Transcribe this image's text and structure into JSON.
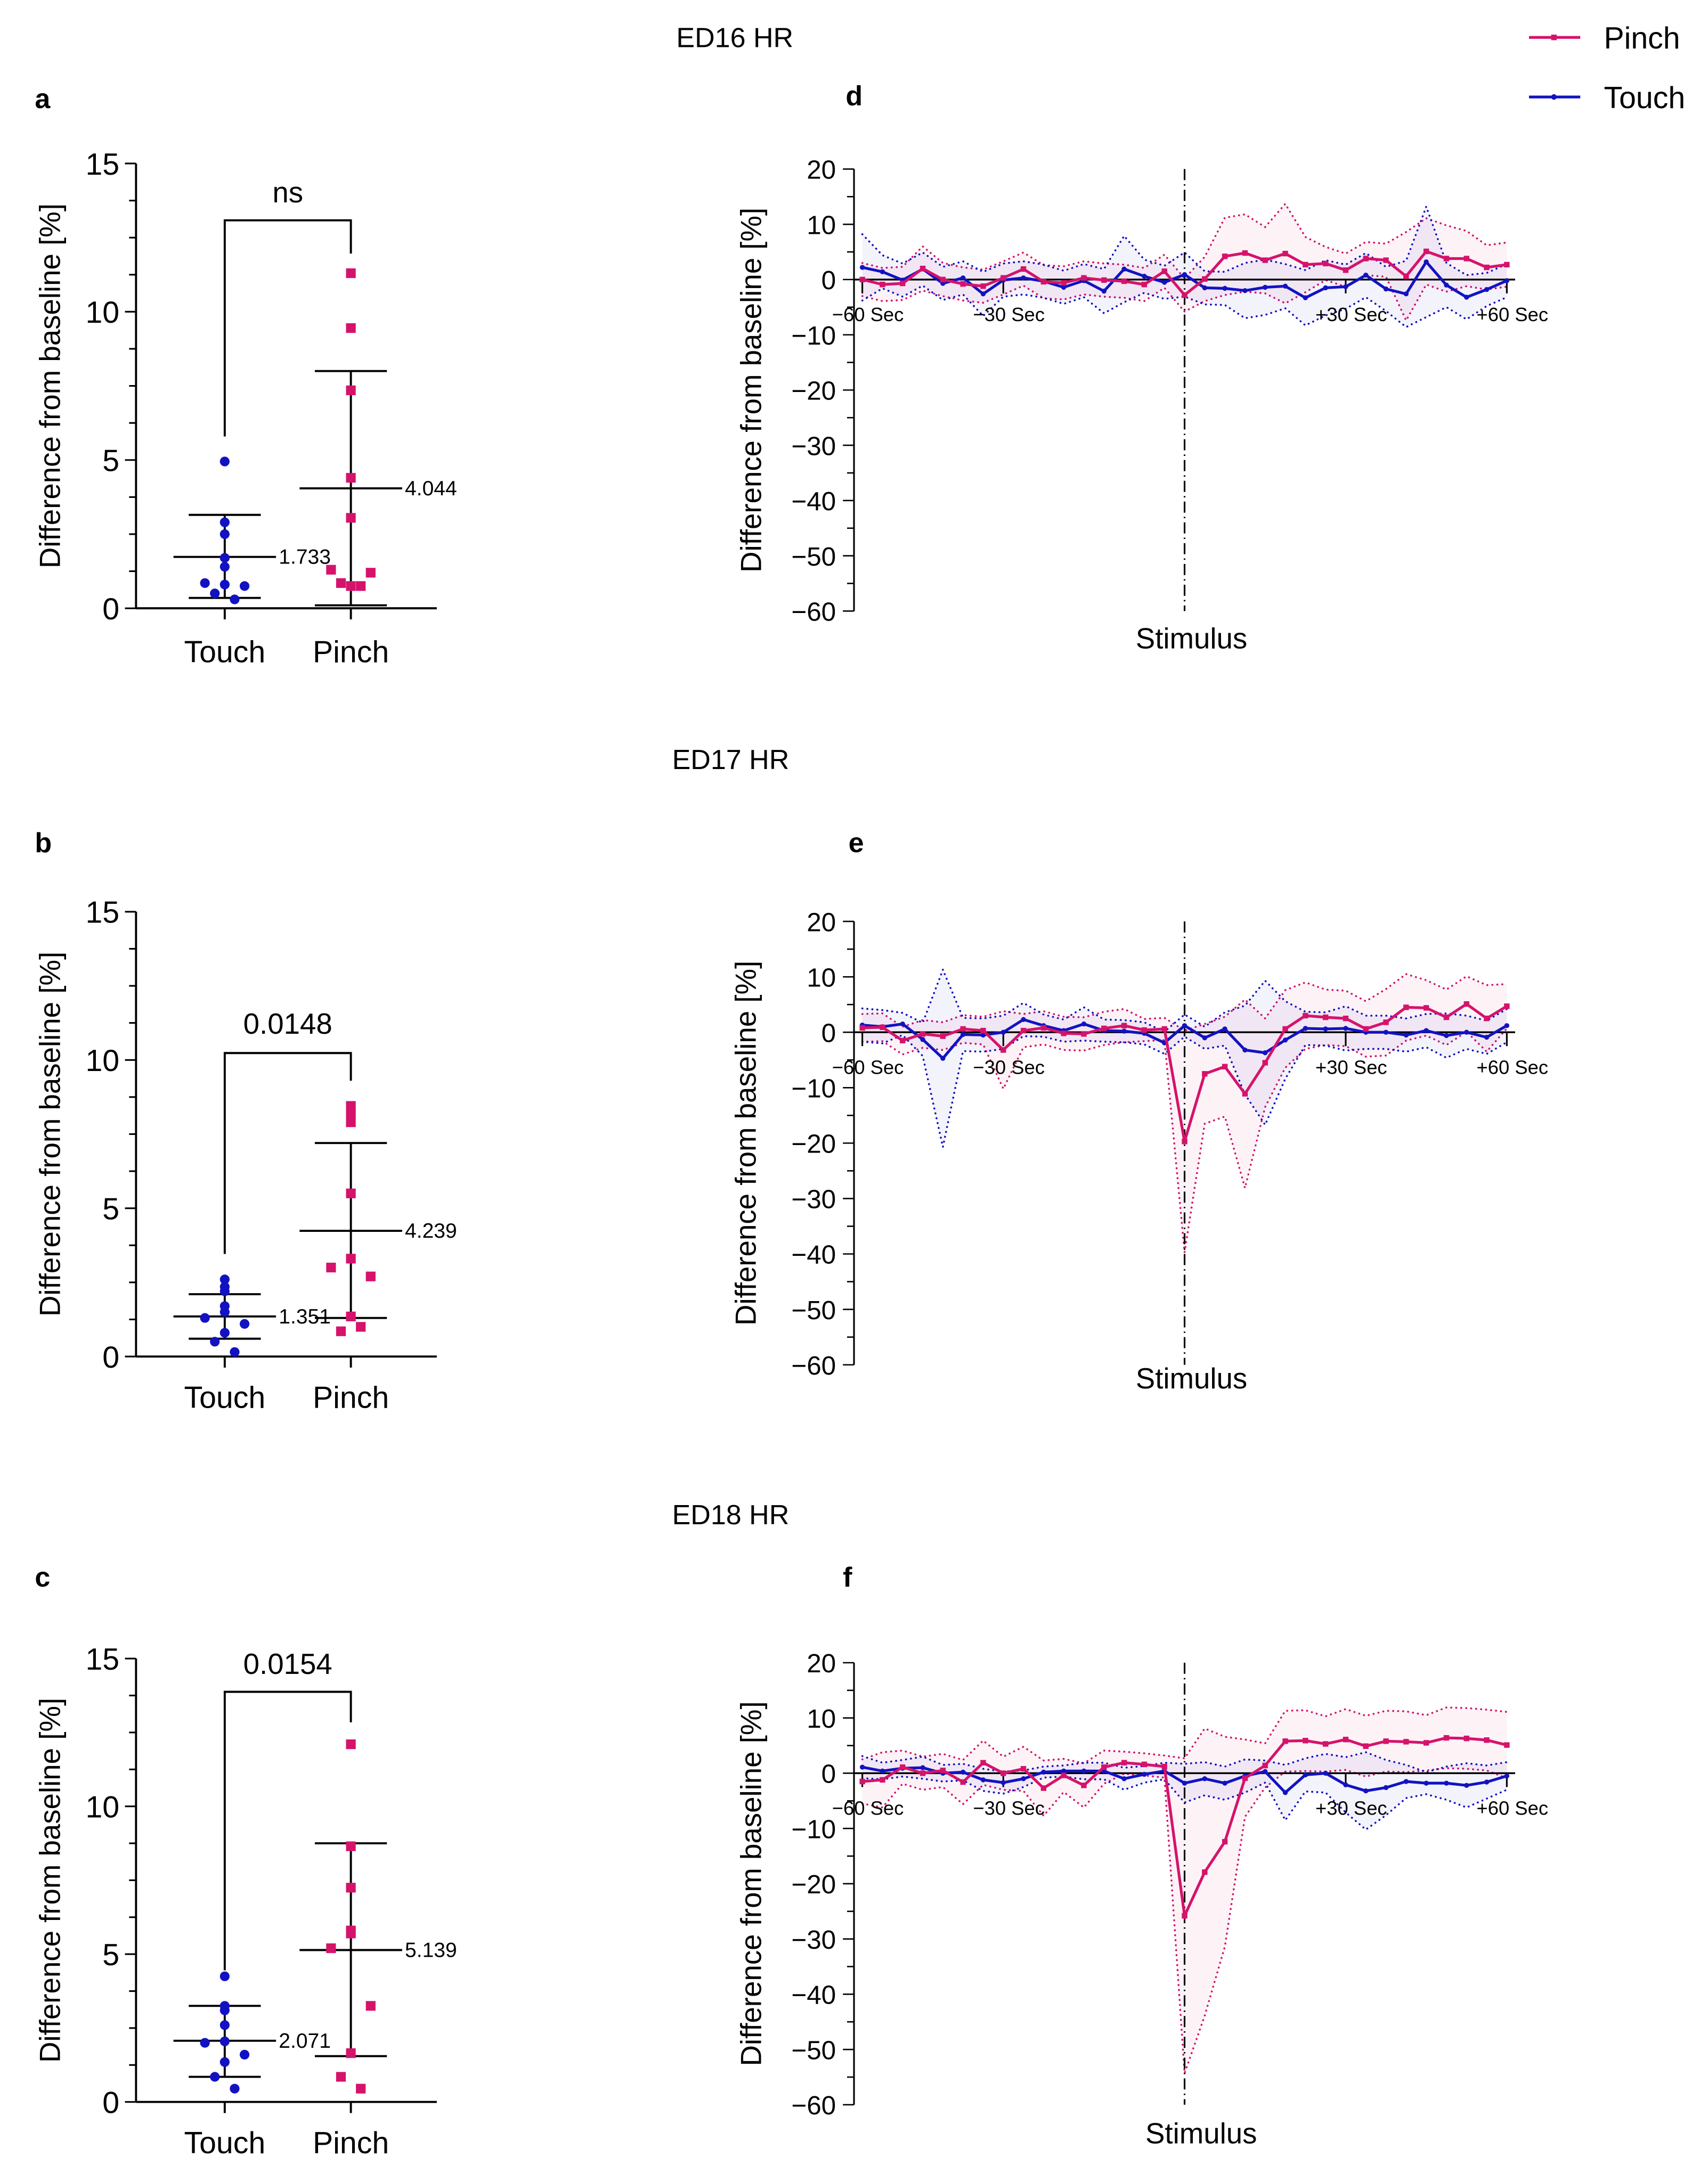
{
  "figure": {
    "titles": [
      "ED16 HR",
      "ED17 HR",
      "ED18 HR"
    ],
    "legend": [
      {
        "label": "Pinch",
        "color": "#d5136b"
      },
      {
        "label": "Touch",
        "color": "#1212c2"
      }
    ]
  },
  "chart_data": [
    {
      "panel": "a",
      "type": "scatter",
      "title": "ED16 HR",
      "ylabel": "Difference from baseline [%]",
      "ylim": [
        0,
        15
      ],
      "yticks": [
        "0",
        "5",
        "10",
        "15"
      ],
      "categories": [
        "Touch",
        "Pinch"
      ],
      "significance": "ns",
      "groups": [
        {
          "name": "Touch",
          "values": [
            4.95,
            2.9,
            2.5,
            1.7,
            1.4,
            0.85,
            0.75,
            0.8,
            0.5,
            0.3
          ],
          "mean": 1.733,
          "mean_label": "1.733",
          "error_bar": [
            0.35,
            3.15
          ]
        },
        {
          "name": "Pinch",
          "values": [
            11.3,
            9.45,
            7.35,
            4.4,
            3.05,
            1.3,
            1.2,
            0.75,
            0.85,
            0.75
          ],
          "mean": 4.044,
          "mean_label": "4.044",
          "error_bar": [
            0.1,
            8.0
          ]
        }
      ]
    },
    {
      "panel": "b",
      "type": "scatter",
      "title": "ED17 HR",
      "ylabel": "Difference from baseline [%]",
      "ylim": [
        0,
        15
      ],
      "yticks": [
        "0",
        "5",
        "10",
        "15"
      ],
      "categories": [
        "Touch",
        "Pinch"
      ],
      "significance": "0.0148",
      "groups": [
        {
          "name": "Touch",
          "values": [
            2.6,
            2.35,
            2.2,
            1.7,
            1.5,
            1.3,
            1.1,
            0.8,
            0.5,
            0.15
          ],
          "mean": 1.351,
          "mean_label": "1.351",
          "error_bar": [
            0.6,
            2.1
          ]
        },
        {
          "name": "Pinch",
          "values": [
            8.45,
            8.2,
            7.9,
            5.5,
            3.3,
            3.0,
            2.7,
            1.35,
            0.85,
            1.0
          ],
          "mean": 4.239,
          "mean_label": "4.239",
          "error_bar": [
            1.3,
            7.2
          ]
        }
      ]
    },
    {
      "panel": "c",
      "type": "scatter",
      "title": "ED18 HR",
      "ylabel": "Difference from baseline [%]",
      "ylim": [
        0,
        15
      ],
      "yticks": [
        "0",
        "5",
        "10",
        "15"
      ],
      "categories": [
        "Touch",
        "Pinch"
      ],
      "significance": "0.0154",
      "groups": [
        {
          "name": "Touch",
          "values": [
            4.25,
            3.25,
            3.1,
            2.6,
            2.05,
            2.0,
            1.6,
            1.35,
            0.85,
            0.45
          ],
          "mean": 2.071,
          "mean_label": "2.071",
          "error_bar": [
            0.85,
            3.25
          ]
        },
        {
          "name": "Pinch",
          "values": [
            12.1,
            8.65,
            7.25,
            5.8,
            5.7,
            5.2,
            3.25,
            1.65,
            0.85,
            0.45
          ],
          "mean": 5.139,
          "mean_label": "5.139",
          "error_bar": [
            1.55,
            8.75
          ]
        }
      ]
    },
    {
      "panel": "d",
      "type": "line",
      "title": "ED16 HR",
      "ylabel": "Difference from baseline [%]",
      "xlabel": "Stimulus",
      "ylim": [
        -60,
        20
      ],
      "yticks": [
        "20",
        "10",
        "0",
        "−10",
        "−20",
        "−30",
        "−40",
        "−50",
        "−60"
      ],
      "x_ticks": [
        {
          "index": 0,
          "label": "−60 Sec"
        },
        {
          "index": 7,
          "label": "−30 Sec"
        },
        {
          "index": 24,
          "label": "+30 Sec"
        },
        {
          "index": 32,
          "label": "+60 Sec"
        }
      ],
      "stimulus_index": 16,
      "series": [
        {
          "name": "Pinch",
          "values": [
            0,
            -0.9,
            -0.7,
            2.0,
            0,
            -0.8,
            -1.2,
            0.3,
            1.9,
            -0.4,
            -0.6,
            0.3,
            -0.1,
            -0.3,
            -0.9,
            1.5,
            -2.8,
            0.1,
            4.2,
            4.8,
            3.5,
            4.7,
            2.7,
            2.9,
            1.7,
            3.8,
            3.5,
            0.6,
            5.1,
            3.8,
            3.8,
            2.2,
            2.7
          ],
          "sd": [
            3,
            3,
            3,
            4,
            3,
            3,
            3,
            3,
            3,
            3,
            3,
            3,
            3,
            3,
            3,
            3,
            3,
            4,
            7,
            7,
            6,
            9,
            5,
            3,
            3,
            3,
            3,
            8,
            6,
            6,
            5,
            4,
            4
          ]
        },
        {
          "name": "Touch",
          "values": [
            2.2,
            1.4,
            -0.1,
            1.9,
            -0.7,
            0.3,
            -2.6,
            -0.1,
            0.3,
            -0.3,
            -1.4,
            -0.2,
            -2.1,
            1.9,
            0.6,
            -0.5,
            0.9,
            -1.5,
            -1.6,
            -2.0,
            -1.4,
            -1.2,
            -3.3,
            -1.5,
            -1.3,
            0.8,
            -1.7,
            -2.6,
            3.2,
            -1.0,
            -3.2,
            -1.8,
            -0.2
          ],
          "sd": [
            6,
            3,
            3,
            3,
            3,
            3,
            4,
            3,
            3,
            3,
            3,
            3,
            4,
            6,
            3,
            3,
            4,
            3,
            3,
            5,
            5,
            4,
            5,
            5,
            4,
            4,
            4,
            6,
            10,
            4,
            4,
            3,
            3
          ]
        }
      ]
    },
    {
      "panel": "e",
      "type": "line",
      "title": "ED17 HR",
      "ylabel": "Difference from baseline [%]",
      "xlabel": "Stimulus",
      "ylim": [
        -60,
        20
      ],
      "yticks": [
        "20",
        "10",
        "0",
        "−10",
        "−20",
        "−30",
        "−40",
        "−50",
        "−60"
      ],
      "x_ticks": [
        {
          "index": 0,
          "label": "−60 Sec"
        },
        {
          "index": 7,
          "label": "−30 Sec"
        },
        {
          "index": 24,
          "label": "+30 Sec"
        },
        {
          "index": 32,
          "label": "+60 Sec"
        }
      ],
      "stimulus_index": 16,
      "series": [
        {
          "name": "Pinch",
          "values": [
            0.8,
            0.9,
            -1.5,
            -0.3,
            -0.7,
            0.6,
            0.3,
            -3.2,
            0.3,
            0.8,
            -0.2,
            -0.3,
            0.7,
            1.2,
            0.4,
            0.6,
            -19.7,
            -7.5,
            -6.2,
            -11.1,
            -5.5,
            0.6,
            3.0,
            2.7,
            2.5,
            0.6,
            1.8,
            4.5,
            4.4,
            2.7,
            5.1,
            2.5,
            4.7
          ],
          "sd": [
            2.5,
            2.5,
            2.5,
            2.5,
            2.5,
            2.5,
            2.5,
            7,
            3,
            3,
            3,
            3,
            3,
            3,
            2,
            2,
            20,
            9,
            9,
            17,
            8,
            7,
            6,
            5,
            5,
            5,
            6,
            6,
            5,
            5,
            5,
            6,
            4
          ]
        },
        {
          "name": "Touch",
          "values": [
            1.3,
            1.0,
            1.5,
            -1.3,
            -4.7,
            -0.4,
            -0.5,
            0,
            2.3,
            1.2,
            0.3,
            1.5,
            0.3,
            0.2,
            -0.2,
            -1.9,
            1.2,
            -1.0,
            0.6,
            -3.2,
            -3.7,
            -1.4,
            0.7,
            0.6,
            0.7,
            0,
            0,
            -0.5,
            0.3,
            -0.6,
            0,
            -0.9,
            1.2
          ],
          "sd": [
            3,
            3,
            2,
            3,
            16,
            3,
            3,
            3,
            3,
            2,
            2,
            3,
            2,
            2,
            2,
            2,
            2,
            2,
            3,
            8,
            13,
            7,
            3,
            3,
            4,
            3,
            3,
            3,
            3,
            4,
            3,
            3,
            3
          ]
        }
      ]
    },
    {
      "panel": "f",
      "type": "line",
      "title": "ED18 HR",
      "ylabel": "Difference from baseline [%]",
      "xlabel": "Stimulus",
      "ylim": [
        -60,
        20
      ],
      "yticks": [
        "20",
        "10",
        "0",
        "−10",
        "−20",
        "−30",
        "−40",
        "−50",
        "−60"
      ],
      "x_ticks": [
        {
          "index": 0,
          "label": "−60 Sec"
        },
        {
          "index": 7,
          "label": "−30 Sec"
        },
        {
          "index": 24,
          "label": "+30 Sec"
        },
        {
          "index": 32,
          "label": "+60 Sec"
        }
      ],
      "stimulus_index": 16,
      "series": [
        {
          "name": "Pinch",
          "values": [
            -1.5,
            -1.2,
            1.1,
            0,
            0.5,
            -1.6,
            1.9,
            0,
            0.8,
            -2.7,
            -0.4,
            -2.2,
            1.1,
            1.9,
            1.6,
            1.2,
            -25.8,
            -17.9,
            -12.4,
            -0.9,
            1.4,
            5.8,
            5.9,
            5.3,
            6.1,
            4.9,
            5.8,
            5.7,
            5.5,
            6.4,
            6.3,
            6.0,
            5.1
          ],
          "sd": [
            4,
            5,
            3,
            3,
            3,
            4,
            4,
            3,
            4,
            5,
            3,
            4,
            3,
            2,
            2,
            2,
            28.5,
            26,
            19,
            7,
            4,
            5.5,
            5.5,
            5,
            5.5,
            5.5,
            5.5,
            5.5,
            5,
            5.5,
            5.5,
            5.5,
            6
          ]
        },
        {
          "name": "Touch",
          "values": [
            1.1,
            0.4,
            0.9,
            1.0,
            0,
            0.2,
            -1.2,
            -1.7,
            -1.0,
            0.2,
            0.4,
            0.4,
            0.4,
            -1.0,
            -0.2,
            0.4,
            -1.8,
            -1.0,
            -1.8,
            -0.5,
            0.3,
            -3.5,
            -0.3,
            0,
            -2.1,
            -3.2,
            -2.6,
            -1.5,
            -1.8,
            -1.8,
            -2.2,
            -1.6,
            -0.5
          ],
          "sd": [
            2,
            1.5,
            1.5,
            2,
            1.5,
            1.5,
            2,
            2,
            1.5,
            1,
            1,
            1.5,
            1.5,
            2,
            1.5,
            1.5,
            3.5,
            3,
            3,
            3,
            2,
            5,
            3,
            3.5,
            5,
            7,
            5,
            3,
            2,
            3,
            4,
            3,
            2.5
          ]
        }
      ]
    }
  ]
}
